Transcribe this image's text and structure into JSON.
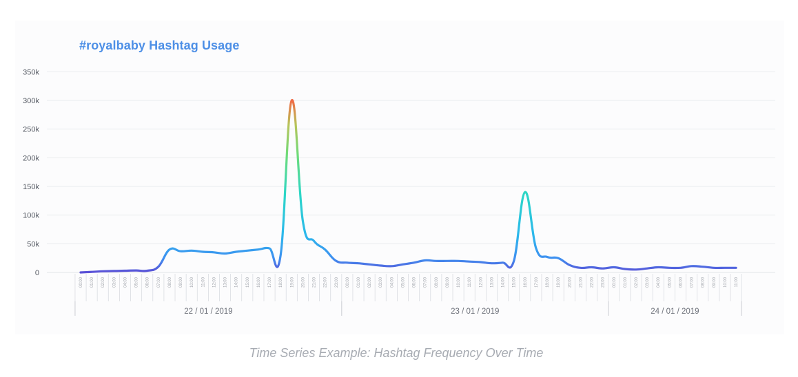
{
  "caption": "Time Series Example: Hashtag Frequency Over Time",
  "colors": {
    "title": "#4d8fe6",
    "line_low": "#5b4fd6",
    "line_mid": "#2bc4e8",
    "line_high": "#f06a45"
  },
  "chart_data": {
    "type": "line",
    "title": "#royalbaby Hashtag Usage",
    "xlabel": "",
    "ylabel": "",
    "ylim": [
      0,
      350000
    ],
    "ytick_labels": [
      "0",
      "50k",
      "100k",
      "150k",
      "200k",
      "250k",
      "300k",
      "350k"
    ],
    "grid": "horizontal",
    "legend": "none",
    "x_hour_labels": [
      "00:00",
      "01:00",
      "02:00",
      "03:00",
      "04:00",
      "05:00",
      "06:00",
      "07:00",
      "08:00",
      "09:00",
      "10:00",
      "11:00",
      "12:00",
      "13:00",
      "14:00",
      "15:00",
      "16:00",
      "17:00",
      "18:00",
      "19:00",
      "20:00",
      "21:00",
      "22:00",
      "23:00",
      "00:00",
      "01:00",
      "02:00",
      "03:00",
      "04:00",
      "05:00",
      "06:00",
      "07:00",
      "08:00",
      "09:00",
      "10:00",
      "11:00",
      "12:00",
      "13:00",
      "14:00",
      "15:00",
      "16:00",
      "17:00",
      "18:00",
      "19:00",
      "20:00",
      "21:00",
      "22:00",
      "23:00",
      "00:00",
      "01:00",
      "02:00",
      "03:00",
      "04:00",
      "05:00",
      "06:00",
      "07:00",
      "08:00",
      "09:00",
      "10:00",
      "11:00"
    ],
    "date_groups": [
      {
        "label": "22 / 01 / 2019",
        "start": 0,
        "end": 24
      },
      {
        "label": "23 / 01 / 2019",
        "start": 24,
        "end": 48
      },
      {
        "label": "24 / 01 / 2019",
        "start": 48,
        "end": 60
      }
    ],
    "series": [
      {
        "values": [
          0,
          1000,
          2000,
          2500,
          3000,
          3500,
          3000,
          10000,
          40000,
          37000,
          38000,
          36000,
          35000,
          33000,
          36000,
          38000,
          40000,
          42000,
          30000,
          300000,
          90000,
          55000,
          40000,
          20000,
          17000,
          16000,
          14000,
          12000,
          11000,
          14000,
          17000,
          21000,
          20000,
          20000,
          20000,
          19000,
          18000,
          16000,
          17000,
          20000,
          140000,
          42000,
          27000,
          25000,
          13000,
          8000,
          9000,
          7000,
          9000,
          6000,
          5000,
          7000,
          9000,
          8000,
          8000,
          11000,
          10000,
          8000,
          8000,
          8000
        ]
      }
    ]
  }
}
